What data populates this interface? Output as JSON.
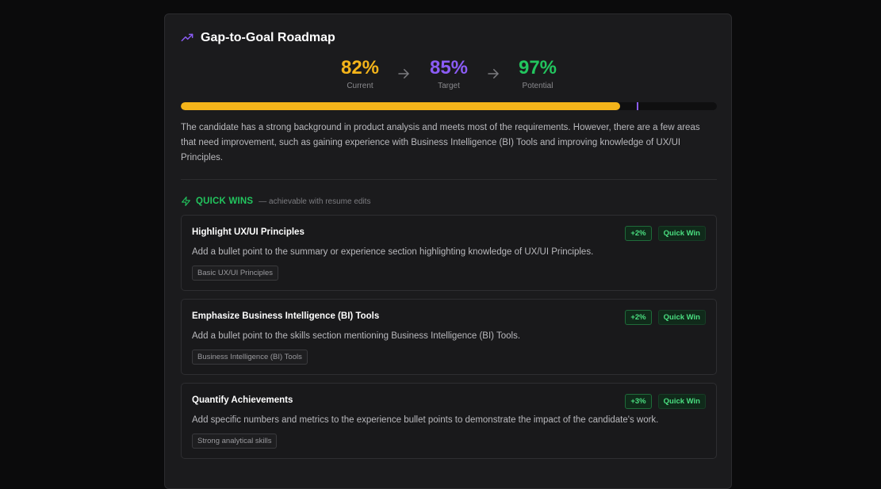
{
  "roadmap": {
    "title": "Gap-to-Goal Roadmap",
    "stages": [
      {
        "value": "82%",
        "label": "Current",
        "color": "#f4b41a"
      },
      {
        "value": "85%",
        "label": "Target",
        "color": "#8b5cf6"
      },
      {
        "value": "97%",
        "label": "Potential",
        "color": "#22c55e"
      }
    ],
    "progress": {
      "current_percent": 82,
      "target_percent": 85
    },
    "summary": "The candidate has a strong background in product analysis and meets most of the requirements. However, there are a few areas that need improvement, such as gaining experience with Business Intelligence (BI) Tools and improving knowledge of UX/UI Principles."
  },
  "quick_wins": {
    "title": "QUICK WINS",
    "subtitle": "— achievable with resume edits",
    "items": [
      {
        "title": "Highlight UX/UI Principles",
        "description": "Add a bullet point to the summary or experience section highlighting knowledge of UX/UI Principles.",
        "tag": "Basic UX/UI Principles",
        "gain": "+2%",
        "type": "Quick Win"
      },
      {
        "title": "Emphasize Business Intelligence (BI) Tools",
        "description": "Add a bullet point to the skills section mentioning Business Intelligence (BI) Tools.",
        "tag": "Business Intelligence (BI) Tools",
        "gain": "+2%",
        "type": "Quick Win"
      },
      {
        "title": "Quantify Achievements",
        "description": "Add specific numbers and metrics to the experience bullet points to demonstrate the impact of the candidate's work.",
        "tag": "Strong analytical skills",
        "gain": "+3%",
        "type": "Quick Win"
      }
    ]
  },
  "icons": {
    "header": "trending-up-icon",
    "section": "lightning-bolt-icon",
    "stage_separator": "arrow-right-icon"
  }
}
